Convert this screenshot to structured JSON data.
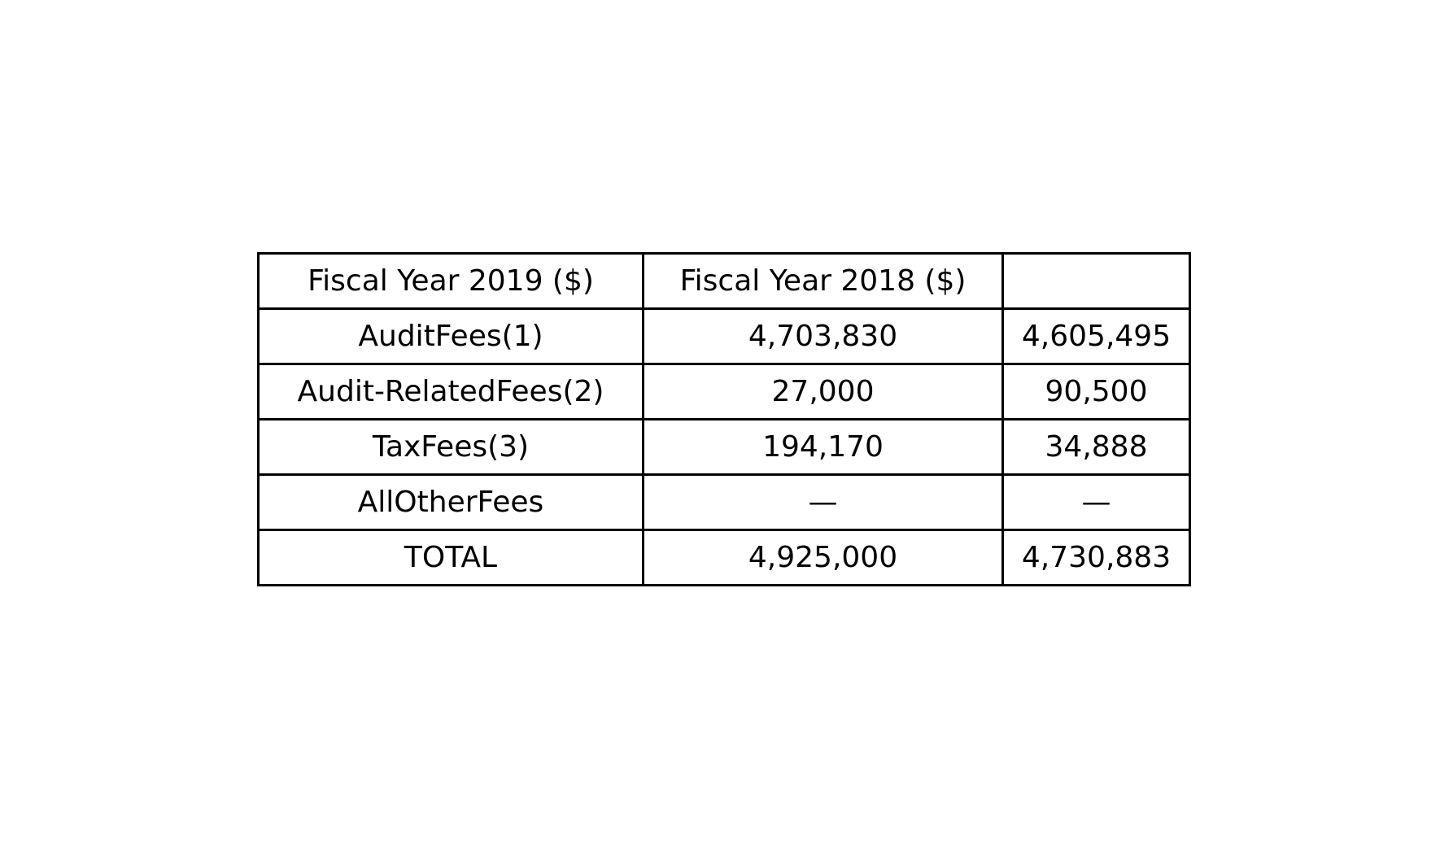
{
  "chart_data": {
    "type": "table",
    "columns": [
      "Fiscal Year 2019 ($)",
      "Fiscal Year 2018 ($)",
      ""
    ],
    "rows": [
      [
        "AuditFees(1)",
        "4,703,830",
        "4,605,495"
      ],
      [
        "Audit-RelatedFees(2)",
        "27,000",
        "90,500"
      ],
      [
        "TaxFees(3)",
        "194,170",
        "34,888"
      ],
      [
        "AllOtherFees",
        "—",
        "—"
      ],
      [
        "TOTAL",
        "4,925,000",
        "4,730,883"
      ]
    ]
  }
}
